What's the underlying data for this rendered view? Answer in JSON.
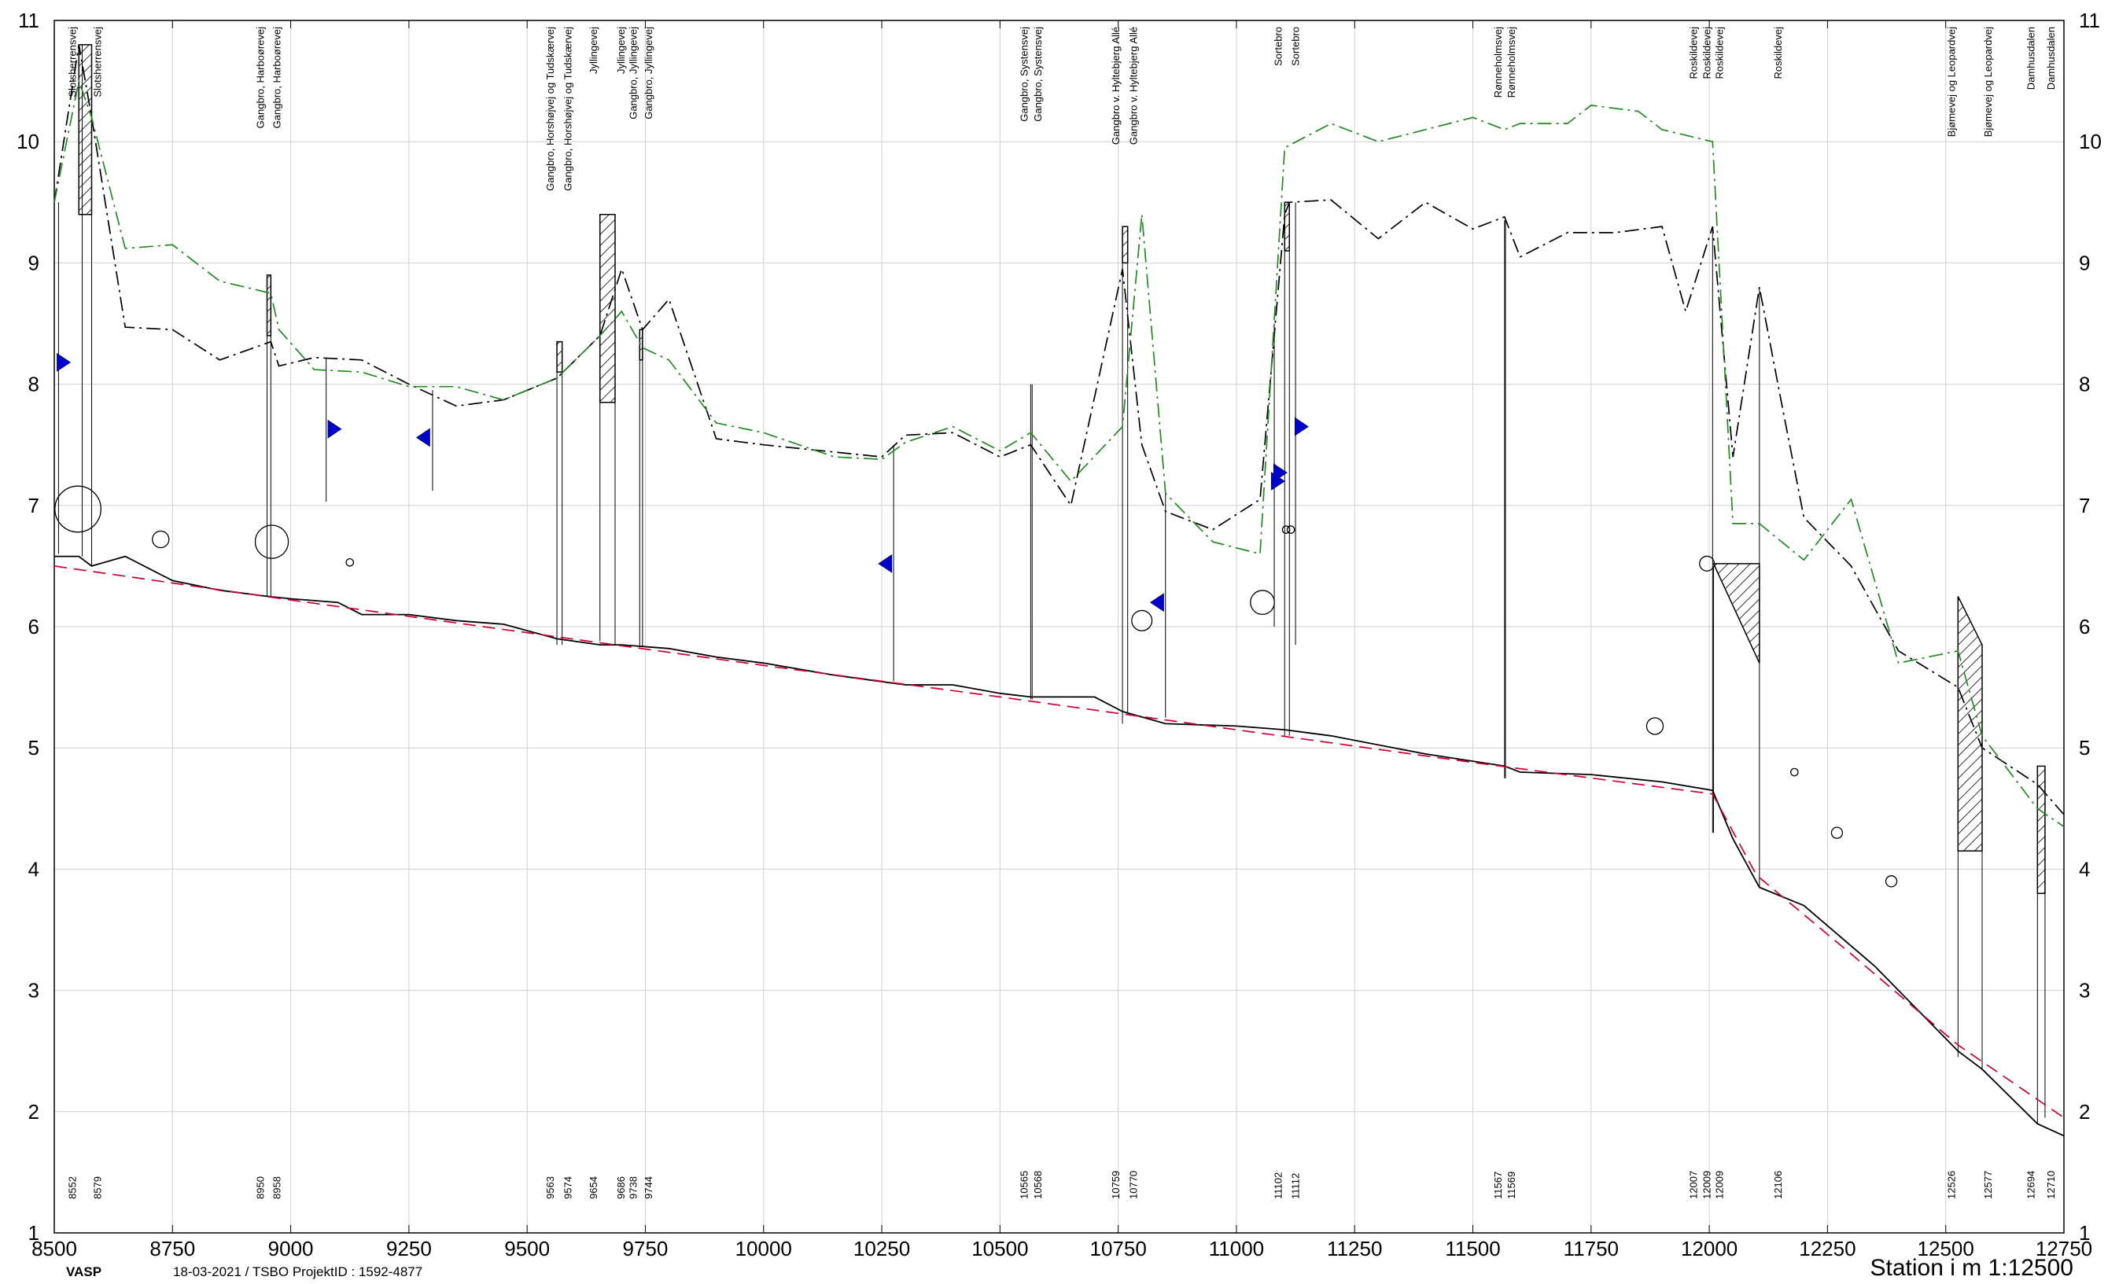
{
  "chart_data": {
    "type": "line",
    "title": "",
    "x_axis": {
      "label": "Station i m",
      "range": [
        8500,
        12750
      ],
      "ticks": [
        8500,
        8750,
        9000,
        9250,
        9500,
        9750,
        10000,
        10250,
        10500,
        10750,
        11000,
        11250,
        11500,
        11750,
        12000,
        12250,
        12500,
        12750
      ]
    },
    "y_axis": {
      "range": [
        1,
        11
      ],
      "ticks": [
        1,
        2,
        3,
        4,
        5,
        6,
        7,
        8,
        9,
        10,
        11
      ]
    },
    "grid": true,
    "series": [
      {
        "key": "terrain_a",
        "color": "#000000",
        "style": "dashdot",
        "points": [
          [
            8500,
            9.5
          ],
          [
            8552,
            10.8
          ],
          [
            8579,
            10.2
          ],
          [
            8650,
            8.47
          ],
          [
            8750,
            8.45
          ],
          [
            8850,
            8.2
          ],
          [
            8958,
            8.35
          ],
          [
            8975,
            8.15
          ],
          [
            9050,
            8.22
          ],
          [
            9150,
            8.2
          ],
          [
            9250,
            8.0
          ],
          [
            9350,
            7.82
          ],
          [
            9450,
            7.87
          ],
          [
            9563,
            8.05
          ],
          [
            9654,
            8.4
          ],
          [
            9700,
            8.95
          ],
          [
            9744,
            8.45
          ],
          [
            9800,
            8.7
          ],
          [
            9900,
            7.55
          ],
          [
            10000,
            7.5
          ],
          [
            10250,
            7.4
          ],
          [
            10300,
            7.58
          ],
          [
            10400,
            7.6
          ],
          [
            10500,
            7.4
          ],
          [
            10565,
            7.5
          ],
          [
            10650,
            7.0
          ],
          [
            10759,
            8.95
          ],
          [
            10800,
            7.5
          ],
          [
            10850,
            6.95
          ],
          [
            10950,
            6.8
          ],
          [
            11050,
            7.05
          ],
          [
            11102,
            9.4
          ],
          [
            11112,
            9.5
          ],
          [
            11200,
            9.52
          ],
          [
            11300,
            9.2
          ],
          [
            11400,
            9.5
          ],
          [
            11500,
            9.28
          ],
          [
            11567,
            9.38
          ],
          [
            11600,
            9.05
          ],
          [
            11700,
            9.25
          ],
          [
            11800,
            9.25
          ],
          [
            11900,
            9.3
          ],
          [
            11950,
            8.6
          ],
          [
            12007,
            9.3
          ],
          [
            12050,
            7.4
          ],
          [
            12106,
            8.8
          ],
          [
            12150,
            7.9
          ],
          [
            12200,
            6.9
          ],
          [
            12300,
            6.5
          ],
          [
            12400,
            5.8
          ],
          [
            12526,
            5.5
          ],
          [
            12577,
            5.0
          ],
          [
            12694,
            4.7
          ],
          [
            12750,
            4.45
          ]
        ]
      },
      {
        "key": "terrain_b",
        "color": "#228b22",
        "style": "dashdot",
        "points": [
          [
            8500,
            9.5
          ],
          [
            8552,
            10.5
          ],
          [
            8579,
            10.2
          ],
          [
            8650,
            9.12
          ],
          [
            8750,
            9.15
          ],
          [
            8850,
            8.85
          ],
          [
            8958,
            8.75
          ],
          [
            8975,
            8.45
          ],
          [
            9050,
            8.12
          ],
          [
            9150,
            8.1
          ],
          [
            9250,
            7.98
          ],
          [
            9350,
            7.98
          ],
          [
            9450,
            7.87
          ],
          [
            9563,
            8.05
          ],
          [
            9654,
            8.4
          ],
          [
            9700,
            8.6
          ],
          [
            9744,
            8.3
          ],
          [
            9800,
            8.2
          ],
          [
            9900,
            7.68
          ],
          [
            10000,
            7.6
          ],
          [
            10150,
            7.4
          ],
          [
            10250,
            7.38
          ],
          [
            10300,
            7.52
          ],
          [
            10400,
            7.65
          ],
          [
            10500,
            7.45
          ],
          [
            10565,
            7.6
          ],
          [
            10650,
            7.2
          ],
          [
            10759,
            7.65
          ],
          [
            10800,
            9.4
          ],
          [
            10850,
            7.1
          ],
          [
            10950,
            6.7
          ],
          [
            11050,
            6.6
          ],
          [
            11102,
            9.95
          ],
          [
            11200,
            10.15
          ],
          [
            11300,
            10.0
          ],
          [
            11500,
            10.2
          ],
          [
            11567,
            10.1
          ],
          [
            11600,
            10.15
          ],
          [
            11700,
            10.15
          ],
          [
            11750,
            10.3
          ],
          [
            11850,
            10.25
          ],
          [
            11900,
            10.1
          ],
          [
            12007,
            10.0
          ],
          [
            12050,
            6.85
          ],
          [
            12106,
            6.85
          ],
          [
            12200,
            6.55
          ],
          [
            12300,
            7.05
          ],
          [
            12400,
            5.7
          ],
          [
            12526,
            5.8
          ],
          [
            12577,
            5.1
          ],
          [
            12694,
            4.5
          ],
          [
            12750,
            4.35
          ]
        ]
      },
      {
        "key": "bottom",
        "color": "#000000",
        "style": "solid",
        "points": [
          [
            8500,
            6.58
          ],
          [
            8552,
            6.58
          ],
          [
            8579,
            6.5
          ],
          [
            8650,
            6.58
          ],
          [
            8750,
            6.38
          ],
          [
            8850,
            6.3
          ],
          [
            8950,
            6.25
          ],
          [
            9000,
            6.23
          ],
          [
            9100,
            6.2
          ],
          [
            9150,
            6.1
          ],
          [
            9250,
            6.1
          ],
          [
            9350,
            6.05
          ],
          [
            9450,
            6.02
          ],
          [
            9563,
            5.9
          ],
          [
            9654,
            5.85
          ],
          [
            9700,
            5.85
          ],
          [
            9800,
            5.82
          ],
          [
            9900,
            5.75
          ],
          [
            10000,
            5.7
          ],
          [
            10150,
            5.6
          ],
          [
            10300,
            5.52
          ],
          [
            10400,
            5.52
          ],
          [
            10500,
            5.45
          ],
          [
            10565,
            5.42
          ],
          [
            10700,
            5.42
          ],
          [
            10759,
            5.3
          ],
          [
            10850,
            5.2
          ],
          [
            11000,
            5.18
          ],
          [
            11102,
            5.15
          ],
          [
            11200,
            5.1
          ],
          [
            11400,
            4.95
          ],
          [
            11567,
            4.85
          ],
          [
            11600,
            4.8
          ],
          [
            11750,
            4.78
          ],
          [
            11900,
            4.72
          ],
          [
            12007,
            4.65
          ],
          [
            12050,
            4.25
          ],
          [
            12106,
            3.85
          ],
          [
            12200,
            3.7
          ],
          [
            12350,
            3.2
          ],
          [
            12526,
            2.5
          ],
          [
            12577,
            2.35
          ],
          [
            12694,
            1.9
          ],
          [
            12750,
            1.8
          ]
        ]
      },
      {
        "key": "design",
        "color": "#cc0033",
        "style": "dashed",
        "points": [
          [
            8500,
            6.5
          ],
          [
            9000,
            6.22
          ],
          [
            9500,
            5.95
          ],
          [
            10000,
            5.68
          ],
          [
            10500,
            5.42
          ],
          [
            11000,
            5.15
          ],
          [
            11500,
            4.88
          ],
          [
            12007,
            4.62
          ],
          [
            12100,
            3.95
          ],
          [
            12300,
            3.3
          ],
          [
            12526,
            2.55
          ],
          [
            12750,
            1.95
          ]
        ]
      }
    ],
    "structures": [
      {
        "name": "Slotsherrensvej",
        "stations": [
          "8552",
          "8579"
        ]
      },
      {
        "name": "Gangbro, Harboørevej",
        "stations": [
          "8950",
          "8958"
        ]
      },
      {
        "name": "Gangbro, Horshøjvej og Tudskærvej",
        "stations": [
          "9563",
          "9574"
        ]
      },
      {
        "name": "Jyllingevej",
        "stations": [
          "9654",
          "9686"
        ]
      },
      {
        "name": "Gangbro, Jyllingevej",
        "stations": [
          "9738",
          "9744"
        ]
      },
      {
        "name": "Gangbro, Systensvej",
        "stations": [
          "10565",
          "10568"
        ]
      },
      {
        "name": "Gangbro v. Hyltebjerg Allé",
        "stations": [
          "10759",
          "10770"
        ]
      },
      {
        "name": "Sortebro",
        "stations": [
          "11102",
          "11112"
        ]
      },
      {
        "name": "Rønneholmsvej",
        "stations": [
          "11567",
          "11569"
        ]
      },
      {
        "name": "Roskildevej",
        "stations": [
          "12007",
          "12009",
          "12009",
          "12106"
        ]
      },
      {
        "name": "Bjømevej og Leopardvej",
        "stations": [
          "12526",
          "12577"
        ]
      },
      {
        "name": "Damhusdalen",
        "stations": [
          "12694",
          "12710"
        ]
      }
    ],
    "hatched_sections": [
      {
        "x0": 8552,
        "x1": 8579,
        "top": 10.8,
        "bottom": 9.4
      },
      {
        "x0": 8950,
        "x1": 8958,
        "top": 8.9,
        "bottom": 8.4
      },
      {
        "x0": 9563,
        "x1": 9574,
        "top": 8.35,
        "bottom": 8.1
      },
      {
        "x0": 9654,
        "x1": 9686,
        "top": 9.4,
        "bottom": 7.85
      },
      {
        "x0": 9738,
        "x1": 9744,
        "top": 8.45,
        "bottom": 8.2
      },
      {
        "x0": 10759,
        "x1": 10770,
        "top": 9.3,
        "bottom": 9.0
      },
      {
        "x0": 11102,
        "x1": 11112,
        "top": 9.5,
        "bottom": 9.1
      },
      {
        "x0": 12009,
        "x1": 12106,
        "top": 6.52,
        "bottom": 6.52,
        "bottom_right": 5.7
      },
      {
        "x0": 12526,
        "x1": 12577,
        "top": 6.25,
        "top_right": 5.85,
        "bottom": 4.15
      },
      {
        "x0": 12694,
        "x1": 12710,
        "top": 4.85,
        "bottom": 3.8
      }
    ],
    "vertical_lines": [
      {
        "x": 8509,
        "y0": 6.6,
        "y1": 9.5
      },
      {
        "x": 8559,
        "y0": 6.58,
        "y1": 10.8
      },
      {
        "x": 8579,
        "y0": 6.5,
        "y1": 10.4
      },
      {
        "x": 8950,
        "y0": 6.25,
        "y1": 8.9
      },
      {
        "x": 8958,
        "y0": 6.25,
        "y1": 8.9
      },
      {
        "x": 9075,
        "y0": 7.03,
        "y1": 8.22
      },
      {
        "x": 9300,
        "y0": 7.12,
        "y1": 7.95
      },
      {
        "x": 9563,
        "y0": 5.85,
        "y1": 8.35
      },
      {
        "x": 9574,
        "y0": 5.85,
        "y1": 8.35
      },
      {
        "x": 9654,
        "y0": 5.88,
        "y1": 9.4
      },
      {
        "x": 9686,
        "y0": 5.85,
        "y1": 9.4
      },
      {
        "x": 9738,
        "y0": 5.83,
        "y1": 8.45
      },
      {
        "x": 9744,
        "y0": 5.83,
        "y1": 8.45
      },
      {
        "x": 10275,
        "y0": 5.55,
        "y1": 7.5
      },
      {
        "x": 10565,
        "y0": 5.4,
        "y1": 8.0
      },
      {
        "x": 10568,
        "y0": 5.4,
        "y1": 8.0
      },
      {
        "x": 10759,
        "y0": 5.2,
        "y1": 9.3
      },
      {
        "x": 10770,
        "y0": 5.28,
        "y1": 9.3
      },
      {
        "x": 10850,
        "y0": 5.25,
        "y1": 7.1
      },
      {
        "x": 11080,
        "y0": 6.0,
        "y1": 8.5
      },
      {
        "x": 11102,
        "y0": 5.1,
        "y1": 9.5
      },
      {
        "x": 11112,
        "y0": 5.1,
        "y1": 9.5
      },
      {
        "x": 11125,
        "y0": 5.85,
        "y1": 9.5
      },
      {
        "x": 11567,
        "y0": 4.75,
        "y1": 9.35
      },
      {
        "x": 11569,
        "y0": 4.75,
        "y1": 9.35
      },
      {
        "x": 12007,
        "y0": 4.3,
        "y1": 9.3
      },
      {
        "x": 12009,
        "y0": 4.3,
        "y1": 6.5
      },
      {
        "x": 12106,
        "y0": 3.85,
        "y1": 8.8
      },
      {
        "x": 12526,
        "y0": 2.45,
        "y1": 6.25
      },
      {
        "x": 12577,
        "y0": 2.35,
        "y1": 5.85
      },
      {
        "x": 12694,
        "y0": 1.9,
        "y1": 4.85
      },
      {
        "x": 12710,
        "y0": 1.95,
        "y1": 4.85
      }
    ],
    "markers": [
      {
        "x": 8517,
        "y": 8.18,
        "dir": "right"
      },
      {
        "x": 9090,
        "y": 7.63,
        "dir": "right"
      },
      {
        "x": 9283,
        "y": 7.56,
        "dir": "left"
      },
      {
        "x": 10260,
        "y": 6.52,
        "dir": "left"
      },
      {
        "x": 10835,
        "y": 6.2,
        "dir": "left"
      },
      {
        "x": 11090,
        "y": 7.27,
        "dir": "right"
      },
      {
        "x": 11085,
        "y": 7.2,
        "dir": "right"
      },
      {
        "x": 11135,
        "y": 7.65,
        "dir": "right"
      }
    ],
    "circles": [
      {
        "x": 8550,
        "y": 6.97,
        "r": 25
      },
      {
        "x": 8725,
        "y": 6.72,
        "r": 9
      },
      {
        "x": 8960,
        "y": 6.7,
        "r": 18
      },
      {
        "x": 9125,
        "y": 6.53,
        "r": 4
      },
      {
        "x": 10800,
        "y": 6.05,
        "r": 11
      },
      {
        "x": 11055,
        "y": 6.2,
        "r": 13
      },
      {
        "x": 11105,
        "y": 6.8,
        "r": 4
      },
      {
        "x": 11115,
        "y": 6.8,
        "r": 4
      },
      {
        "x": 11885,
        "y": 5.18,
        "r": 9
      },
      {
        "x": 11995,
        "y": 6.52,
        "r": 8
      },
      {
        "x": 12180,
        "y": 4.8,
        "r": 4
      },
      {
        "x": 12270,
        "y": 4.3,
        "r": 6
      },
      {
        "x": 12385,
        "y": 3.9,
        "r": 6
      }
    ]
  },
  "footer": {
    "app": "VASP",
    "info": "18-03-2021 / TSBO   ProjektID : 1592-4877",
    "scale": "Station i m  1:12500"
  }
}
